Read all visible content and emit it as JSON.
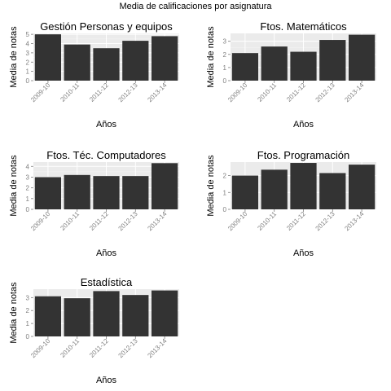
{
  "figure_title": "Media de calificaciones por asignatura",
  "chart_data": [
    {
      "type": "bar",
      "title": "Gestión Personas y equipos",
      "categories": [
        "2009-10",
        "2010-11",
        "2011-12",
        "2012-13",
        "2013-14"
      ],
      "values": [
        5.0,
        3.9,
        3.5,
        4.3,
        4.8
      ],
      "xlabel": "Años",
      "ylabel": "Media de notas",
      "ylim": [
        0,
        5.1
      ],
      "yticks": [
        0,
        1,
        2,
        3,
        4,
        5
      ],
      "grid": true
    },
    {
      "type": "bar",
      "title": "Ftos. Matemáticos",
      "categories": [
        "2009-10",
        "2010-11",
        "2011-12",
        "2012-13",
        "2013-14"
      ],
      "values": [
        2.1,
        2.6,
        2.2,
        3.1,
        3.5
      ],
      "xlabel": "Años",
      "ylabel": "Media de notas",
      "ylim": [
        0,
        3.6
      ],
      "yticks": [
        0,
        1,
        2,
        3
      ],
      "grid": true
    },
    {
      "type": "bar",
      "title": "Ftos. Téc. Computadores",
      "categories": [
        "2009-10",
        "2010-11",
        "2011-12",
        "2012-13",
        "2013-14"
      ],
      "values": [
        3.0,
        3.2,
        3.1,
        3.1,
        4.3
      ],
      "xlabel": "Años",
      "ylabel": "Media de notas",
      "ylim": [
        0,
        4.4
      ],
      "yticks": [
        0,
        1,
        2,
        3,
        4
      ],
      "grid": true
    },
    {
      "type": "bar",
      "title": "Ftos. Programación",
      "categories": [
        "2009-10",
        "2010-11",
        "2011-12",
        "2012-13",
        "2013-14"
      ],
      "values": [
        2.0,
        2.35,
        2.75,
        2.15,
        2.65
      ],
      "xlabel": "Años",
      "ylabel": "Media de notas",
      "ylim": [
        0,
        2.8
      ],
      "yticks": [
        0,
        1,
        2
      ],
      "grid": true
    },
    {
      "type": "bar",
      "title": "Estadística",
      "categories": [
        "2009-10",
        "2010-11",
        "2011-12",
        "2012-13",
        "2013-14"
      ],
      "values": [
        3.1,
        2.95,
        3.5,
        3.2,
        3.55
      ],
      "xlabel": "Años",
      "ylabel": "Media de notas",
      "ylim": [
        0,
        3.65
      ],
      "yticks": [
        0,
        1,
        2,
        3
      ],
      "grid": true
    }
  ],
  "colors": {
    "bar": "#333333",
    "panel_background": "#ebebeb",
    "grid_major": "#ffffff",
    "grid_minor": "#f5f5f5",
    "tick_text": "#7f7f7f"
  }
}
